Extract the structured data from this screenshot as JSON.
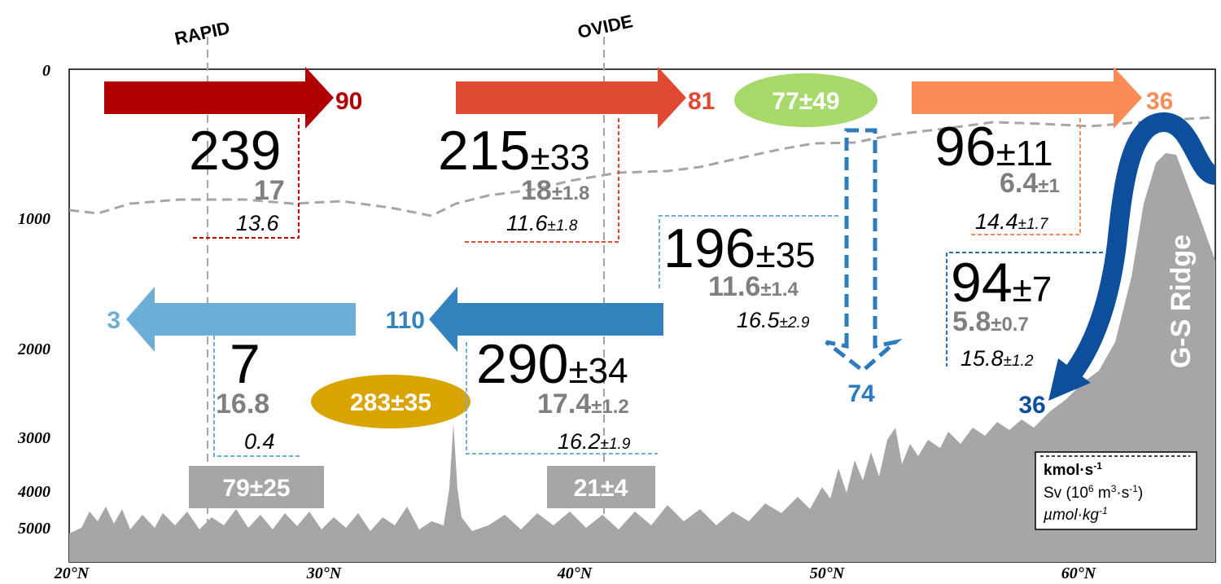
{
  "sections": [
    {
      "label": "RAPID"
    },
    {
      "label": "OVIDE"
    }
  ],
  "y_axis": {
    "labels": [
      "0",
      "1000",
      "2000",
      "3000",
      "4000",
      "5000"
    ]
  },
  "x_axis": {
    "labels": [
      "20°N",
      "30°N",
      "40°N",
      "50°N",
      "60°N"
    ]
  },
  "upper_arrows": [
    {
      "label": "90"
    },
    {
      "label": "81"
    },
    {
      "label": "36"
    }
  ],
  "lower_arrows": [
    {
      "label": "3"
    },
    {
      "label": "110"
    }
  ],
  "boxes": [
    {
      "transport": "239",
      "volume": "17",
      "concentration": "13.6"
    },
    {
      "transport": "215",
      "transport_error": "±33",
      "volume": "18",
      "volume_error": "±1.8",
      "concentration": "11.6",
      "concentration_error": "±1.8"
    },
    {
      "transport": "196",
      "transport_error": "±35",
      "volume": "11.6",
      "volume_error": "±1.4",
      "concentration": "16.5",
      "concentration_error": "±2.9"
    },
    {
      "transport": "96",
      "transport_error": "±11",
      "volume": "6.4",
      "volume_error": "±1",
      "concentration": "14.4",
      "concentration_error": "±1.7"
    },
    {
      "transport": "94",
      "transport_error": "±7",
      "volume": "5.8",
      "volume_error": "±0.7",
      "concentration": "15.8",
      "concentration_error": "±1.2"
    },
    {
      "transport": "7",
      "volume": "16.8",
      "concentration": "0.4"
    },
    {
      "transport": "290",
      "transport_error": "±34",
      "volume": "17.4",
      "volume_error": "±1.2",
      "concentration": "16.2",
      "concentration_error": "±1.9"
    }
  ],
  "ellipses": [
    {
      "label": "77±49"
    },
    {
      "label": "283±35"
    }
  ],
  "grey_boxes": [
    {
      "label": "79±25"
    },
    {
      "label": "21±4"
    }
  ],
  "downward_arrows": [
    {
      "label": "74"
    },
    {
      "label": "36"
    }
  ],
  "ridge_label": "G-S Ridge",
  "legend": {
    "line1": {
      "text": "kmol·s",
      "sup": "-1"
    },
    "line2": {
      "a": "Sv (10",
      "sup1": "6",
      "b": " m",
      "sup2": "3",
      "c": "·s",
      "sup3": "-1",
      "d": ")"
    },
    "line3": {
      "text": "µmol·kg",
      "sup": "-1"
    }
  }
}
